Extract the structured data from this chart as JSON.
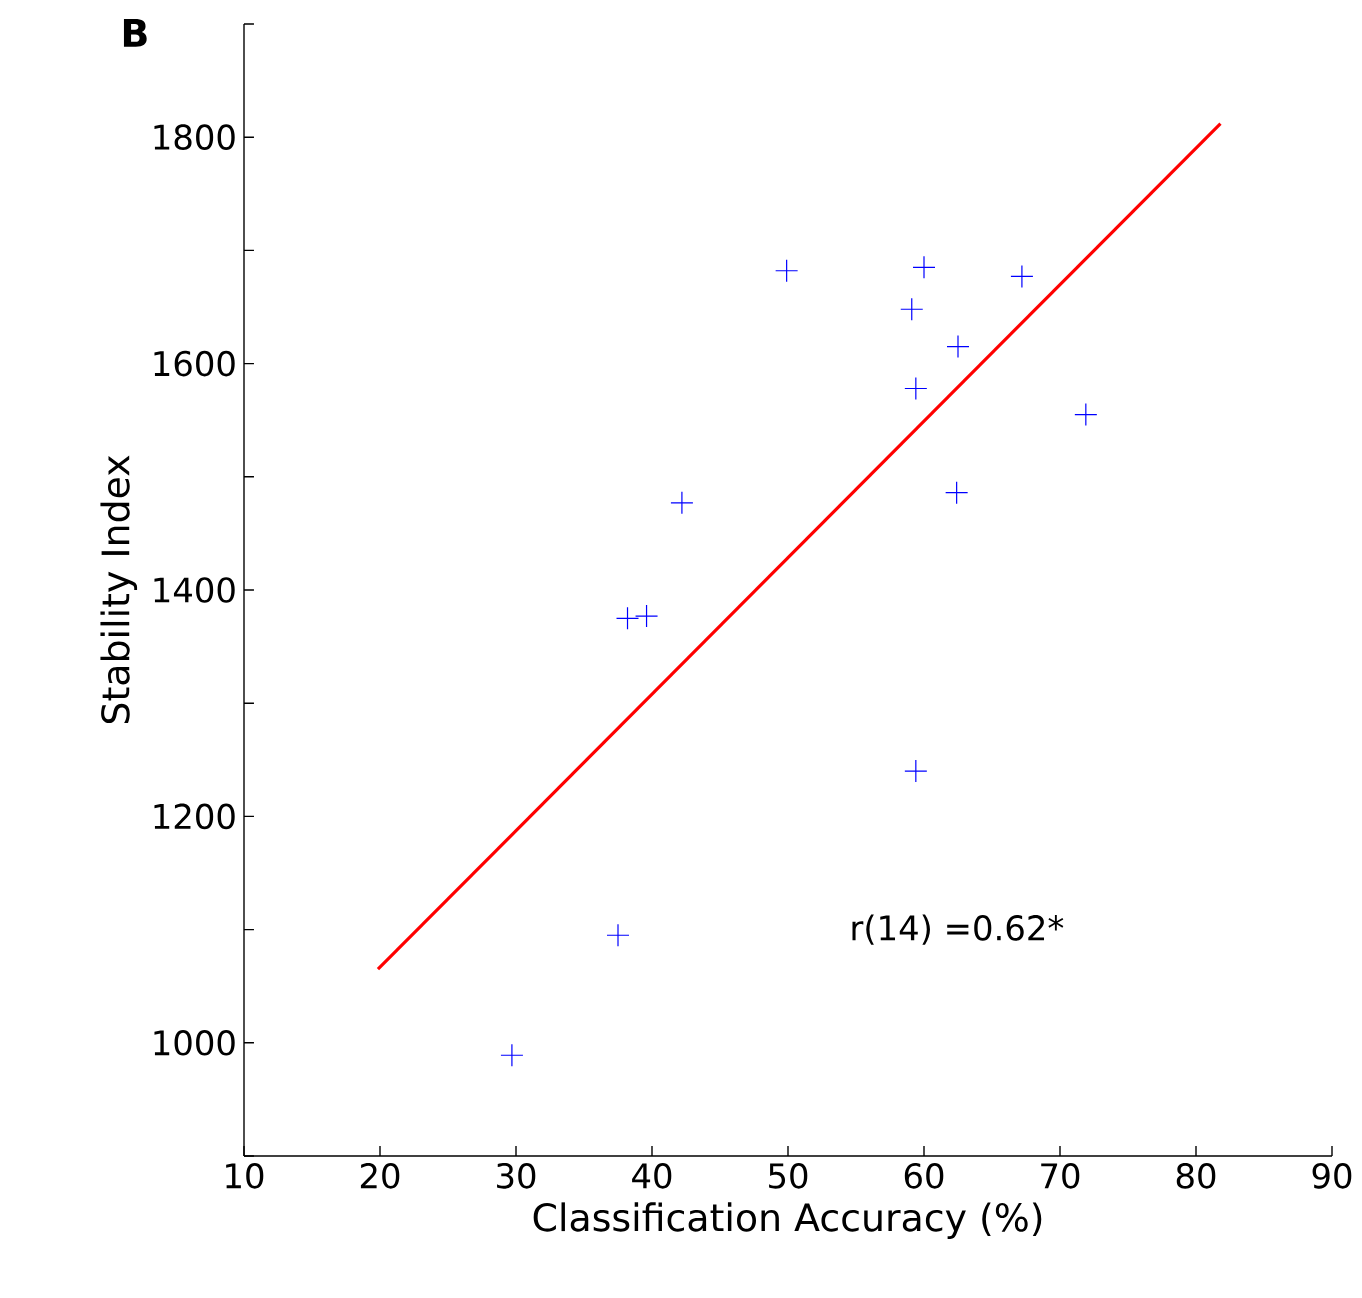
{
  "chart_data": {
    "type": "scatter",
    "title": "B",
    "xlabel": "Classification Accuracy (%)",
    "ylabel": "Stability Index",
    "xlim": [
      10,
      90
    ],
    "ylim": [
      900,
      1900
    ],
    "xticks": [
      10,
      20,
      30,
      40,
      50,
      60,
      70,
      80,
      90
    ],
    "yticks": [
      {
        "value": 900,
        "label": null
      },
      1000,
      {
        "value": 1100,
        "label": null
      },
      1200,
      {
        "value": 1300,
        "label": null
      },
      1400,
      {
        "value": 1500,
        "label": null
      },
      1600,
      {
        "value": 1700,
        "label": null
      },
      1800,
      {
        "value": 1900,
        "label": null
      }
    ],
    "grid": false,
    "series": [
      {
        "marker": "cross",
        "color": "#0000ff",
        "x": [
          29.7,
          37.5,
          38.2,
          39.6,
          42.2,
          49.9,
          60.0,
          59.1,
          59.4,
          62.5,
          62.4,
          59.4,
          67.2,
          71.9
        ],
        "values": [
          989,
          1095,
          1375,
          1377,
          1477,
          1682,
          1685,
          1648,
          1578,
          1615,
          1486,
          1240,
          1677,
          1555
        ]
      },
      {
        "type": "line",
        "marker": "none",
        "color": "#ff0000",
        "x": [
          19.85,
          81.8
        ],
        "values": [
          1065,
          1812
        ]
      }
    ],
    "annotations": [
      "r(14) =0.62*"
    ]
  }
}
